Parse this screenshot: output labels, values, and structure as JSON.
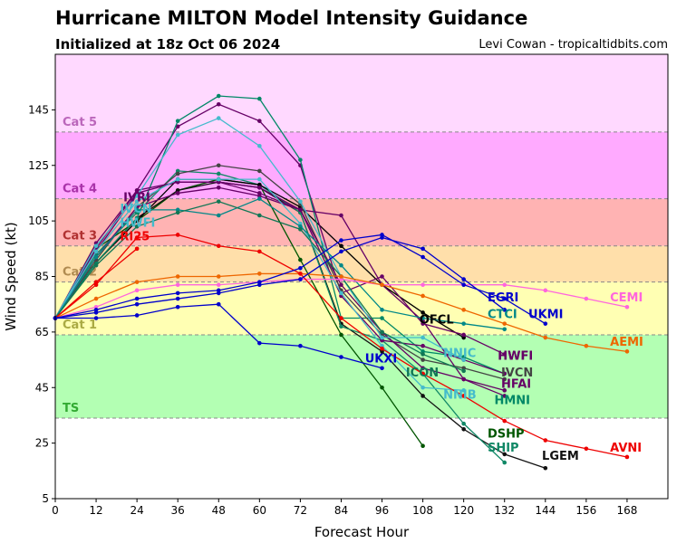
{
  "header": {
    "title": "Hurricane MILTON Model Intensity Guidance",
    "subtitle": "Initialized at 18z Oct 06 2024",
    "credit": "Levi Cowan - tropicaltidbits.com"
  },
  "chart_data": {
    "type": "line",
    "xlabel": "Forecast Hour",
    "ylabel": "Wind Speed (kt)",
    "xlim": [
      0,
      180
    ],
    "ylim": [
      5,
      165
    ],
    "xticks": [
      0,
      12,
      24,
      36,
      48,
      60,
      72,
      84,
      96,
      108,
      120,
      132,
      144,
      156,
      168
    ],
    "yticks": [
      5,
      25,
      45,
      65,
      85,
      105,
      125,
      145
    ],
    "grid": false,
    "bands": [
      {
        "name": "TS",
        "from": 34,
        "to": 64,
        "color": "#b3ffb3",
        "label_color": "#33aa33"
      },
      {
        "name": "Cat 1",
        "from": 64,
        "to": 83,
        "color": "#ffffb3",
        "label_color": "#aaaa44"
      },
      {
        "name": "Cat 2",
        "from": 83,
        "to": 96,
        "color": "#ffdfaa",
        "label_color": "#b08a50"
      },
      {
        "name": "Cat 3",
        "from": 96,
        "to": 113,
        "color": "#ffb3b3",
        "label_color": "#b03030"
      },
      {
        "name": "Cat 4",
        "from": 113,
        "to": 137,
        "color": "#ffaaff",
        "label_color": "#aa33aa"
      },
      {
        "name": "Cat 5",
        "from": 137,
        "to": 165,
        "color": "#ffd9ff",
        "label_color": "#bb66bb"
      }
    ],
    "series": [
      {
        "name": "DSHP",
        "color": "#005500",
        "x": [
          0,
          12,
          24,
          36,
          48,
          60,
          72,
          84,
          96,
          108
        ],
        "y": [
          70,
          95,
          105,
          116,
          120,
          118,
          91,
          64,
          45,
          24
        ],
        "label_x": 127,
        "label_y": 27
      },
      {
        "name": "LGEM",
        "color": "#111111",
        "x": [
          0,
          12,
          24,
          36,
          48,
          60,
          72,
          84,
          96,
          108,
          120,
          132,
          144
        ],
        "y": [
          70,
          90,
          106,
          116,
          119,
          117,
          108,
          68,
          58,
          42,
          30,
          21,
          16
        ],
        "label_x": 143,
        "label_y": 19
      },
      {
        "name": "SHIP",
        "color": "#118866",
        "x": [
          0,
          12,
          24,
          36,
          48,
          60,
          72,
          84,
          96,
          108,
          120,
          132
        ],
        "y": [
          70,
          93,
          108,
          123,
          122,
          118,
          108,
          67,
          62,
          50,
          32,
          18
        ],
        "label_x": 127,
        "label_y": 22
      },
      {
        "name": "OFCL",
        "color": "#000000",
        "x": [
          0,
          12,
          24,
          36,
          48,
          60,
          72,
          84,
          96,
          108,
          120
        ],
        "y": [
          70,
          90,
          105,
          120,
          120,
          118,
          110,
          96,
          82,
          72,
          63
        ],
        "label_x": 107,
        "label_y": 68
      },
      {
        "name": "HWFI",
        "color": "#660066",
        "x": [
          0,
          12,
          24,
          36,
          48,
          60,
          72,
          84,
          96,
          108,
          120,
          132
        ],
        "y": [
          70,
          97,
          116,
          139,
          147,
          141,
          125,
          79,
          85,
          68,
          64,
          57
        ],
        "label_x": 130,
        "label_y": 55
      },
      {
        "name": "HMNI",
        "color": "#008866",
        "x": [
          0,
          12,
          24,
          36,
          48,
          60,
          72,
          84,
          96,
          108,
          120,
          132
        ],
        "y": [
          70,
          90,
          106,
          141,
          150,
          149,
          127,
          70,
          70,
          58,
          56,
          50
        ],
        "label_x": 129,
        "label_y": 39
      },
      {
        "name": "HFAI",
        "color": "#660066",
        "x": [
          0,
          12,
          24,
          36,
          48,
          60,
          72,
          84,
          96,
          108,
          120,
          132
        ],
        "y": [
          70,
          94,
          115,
          119,
          119,
          117,
          109,
          107,
          82,
          69,
          48,
          42
        ],
        "label_x": 131,
        "label_y": 45
      },
      {
        "name": "IVCN",
        "color": "#444444",
        "x": [
          0,
          12,
          24,
          36,
          48,
          60,
          72,
          84,
          96,
          108,
          120,
          132
        ],
        "y": [
          70,
          91,
          110,
          122,
          125,
          123,
          111,
          80,
          64,
          55,
          52,
          48
        ],
        "label_x": 131,
        "label_y": 49
      },
      {
        "name": "HWFI",
        "color": "#660066",
        "x": [
          0,
          12,
          24,
          36,
          48,
          60,
          72,
          84,
          96,
          108,
          120,
          132
        ],
        "y": [
          70,
          92,
          110,
          115,
          117,
          114,
          109,
          78,
          62,
          60,
          55,
          50
        ],
        "label_x": 130,
        "label_y": 55
      },
      {
        "name": "IVRI",
        "color": "#660066",
        "x": [
          0,
          12,
          24,
          36,
          48,
          60,
          72,
          84,
          96,
          108,
          120,
          132
        ],
        "y": [
          70,
          95,
          116,
          119,
          119,
          115,
          109,
          82,
          65,
          52,
          48,
          44
        ],
        "label_x": 20,
        "label_y": 112
      },
      {
        "name": "NNIC",
        "color": "#44bbcc",
        "x": [
          0,
          12,
          24,
          36,
          48,
          60,
          72,
          84,
          96,
          108,
          120
        ],
        "y": [
          70,
          96,
          114,
          136,
          142,
          132,
          112,
          85,
          63,
          63,
          55
        ],
        "label_x": 114,
        "label_y": 56
      },
      {
        "name": "NNIB",
        "color": "#44bbcc",
        "x": [
          0,
          12,
          24,
          36,
          48,
          60,
          72,
          84,
          96,
          108,
          120
        ],
        "y": [
          70,
          94,
          112,
          120,
          120,
          120,
          104,
          79,
          60,
          45,
          44
        ],
        "label_x": 114,
        "label_y": 41
      },
      {
        "name": "CTCI",
        "color": "#008888",
        "x": [
          0,
          12,
          24,
          36,
          48,
          60,
          72,
          84,
          96,
          108,
          120,
          132
        ],
        "y": [
          70,
          92,
          109,
          109,
          107,
          113,
          103,
          89,
          73,
          70,
          68,
          66
        ],
        "label_x": 127,
        "label_y": 70
      },
      {
        "name": "ICON",
        "color": "#117755",
        "x": [
          0,
          12,
          24,
          36,
          48,
          60,
          72,
          84,
          96,
          108,
          120
        ],
        "y": [
          70,
          89,
          103,
          108,
          112,
          107,
          102,
          85,
          65,
          57,
          51
        ],
        "label_x": 103,
        "label_y": 49
      },
      {
        "name": "CEMI",
        "color": "#ff66dd",
        "x": [
          0,
          12,
          24,
          36,
          48,
          60,
          72,
          84,
          96,
          108,
          120,
          132,
          144,
          156,
          168
        ],
        "y": [
          70,
          74,
          80,
          82,
          82,
          83,
          84,
          84,
          82,
          82,
          82,
          82,
          80,
          77,
          74
        ],
        "label_x": 163,
        "label_y": 76
      },
      {
        "name": "AEMI",
        "color": "#ee6600",
        "x": [
          0,
          12,
          24,
          36,
          48,
          60,
          72,
          84,
          96,
          108,
          120,
          132,
          144,
          156,
          168
        ],
        "y": [
          70,
          77,
          83,
          85,
          85,
          86,
          86,
          85,
          82,
          78,
          73,
          68,
          63,
          60,
          58
        ],
        "label_x": 163,
        "label_y": 60
      },
      {
        "name": "AVNI",
        "color": "#ee0000",
        "x": [
          0,
          12,
          24,
          36,
          48,
          60,
          72,
          84,
          96,
          108,
          120,
          132,
          144,
          156,
          168
        ],
        "y": [
          70,
          82,
          99,
          100,
          96,
          94,
          86,
          70,
          59,
          50,
          42,
          33,
          26,
          23,
          20
        ],
        "label_x": 163,
        "label_y": 22
      },
      {
        "name": "RI25",
        "color": "#ee0000",
        "x": [
          0,
          12,
          24
        ],
        "y": [
          70,
          83,
          95
        ],
        "label_x": 19,
        "label_y": 98
      },
      {
        "name": "UKXI",
        "color": "#0000cc",
        "x": [
          0,
          12,
          24,
          36,
          48,
          60,
          72,
          84,
          96
        ],
        "y": [
          70,
          70,
          71,
          74,
          75,
          61,
          60,
          56,
          52
        ],
        "label_x": 91,
        "label_y": 54
      },
      {
        "name": "UKMI",
        "color": "#0000cc",
        "x": [
          0,
          12,
          24,
          36,
          48,
          60,
          72,
          84,
          96,
          108,
          120,
          132,
          144
        ],
        "y": [
          70,
          73,
          77,
          79,
          80,
          83,
          88,
          98,
          100,
          92,
          82,
          77,
          68
        ],
        "label_x": 139,
        "label_y": 70
      },
      {
        "name": "EGRI",
        "color": "#0000cc",
        "x": [
          0,
          12,
          24,
          36,
          48,
          60,
          72,
          84,
          96,
          108,
          120,
          132
        ],
        "y": [
          70,
          72,
          75,
          77,
          79,
          82,
          84,
          94,
          99,
          95,
          84,
          73
        ],
        "label_x": 127,
        "label_y": 76
      }
    ],
    "extra_labels": [
      {
        "text": "IVCN",
        "color": "#44bbcc",
        "x": 19,
        "y": 108
      },
      {
        "text": "HWFI",
        "color": "#44bbcc",
        "x": 19,
        "y": 103
      }
    ]
  }
}
